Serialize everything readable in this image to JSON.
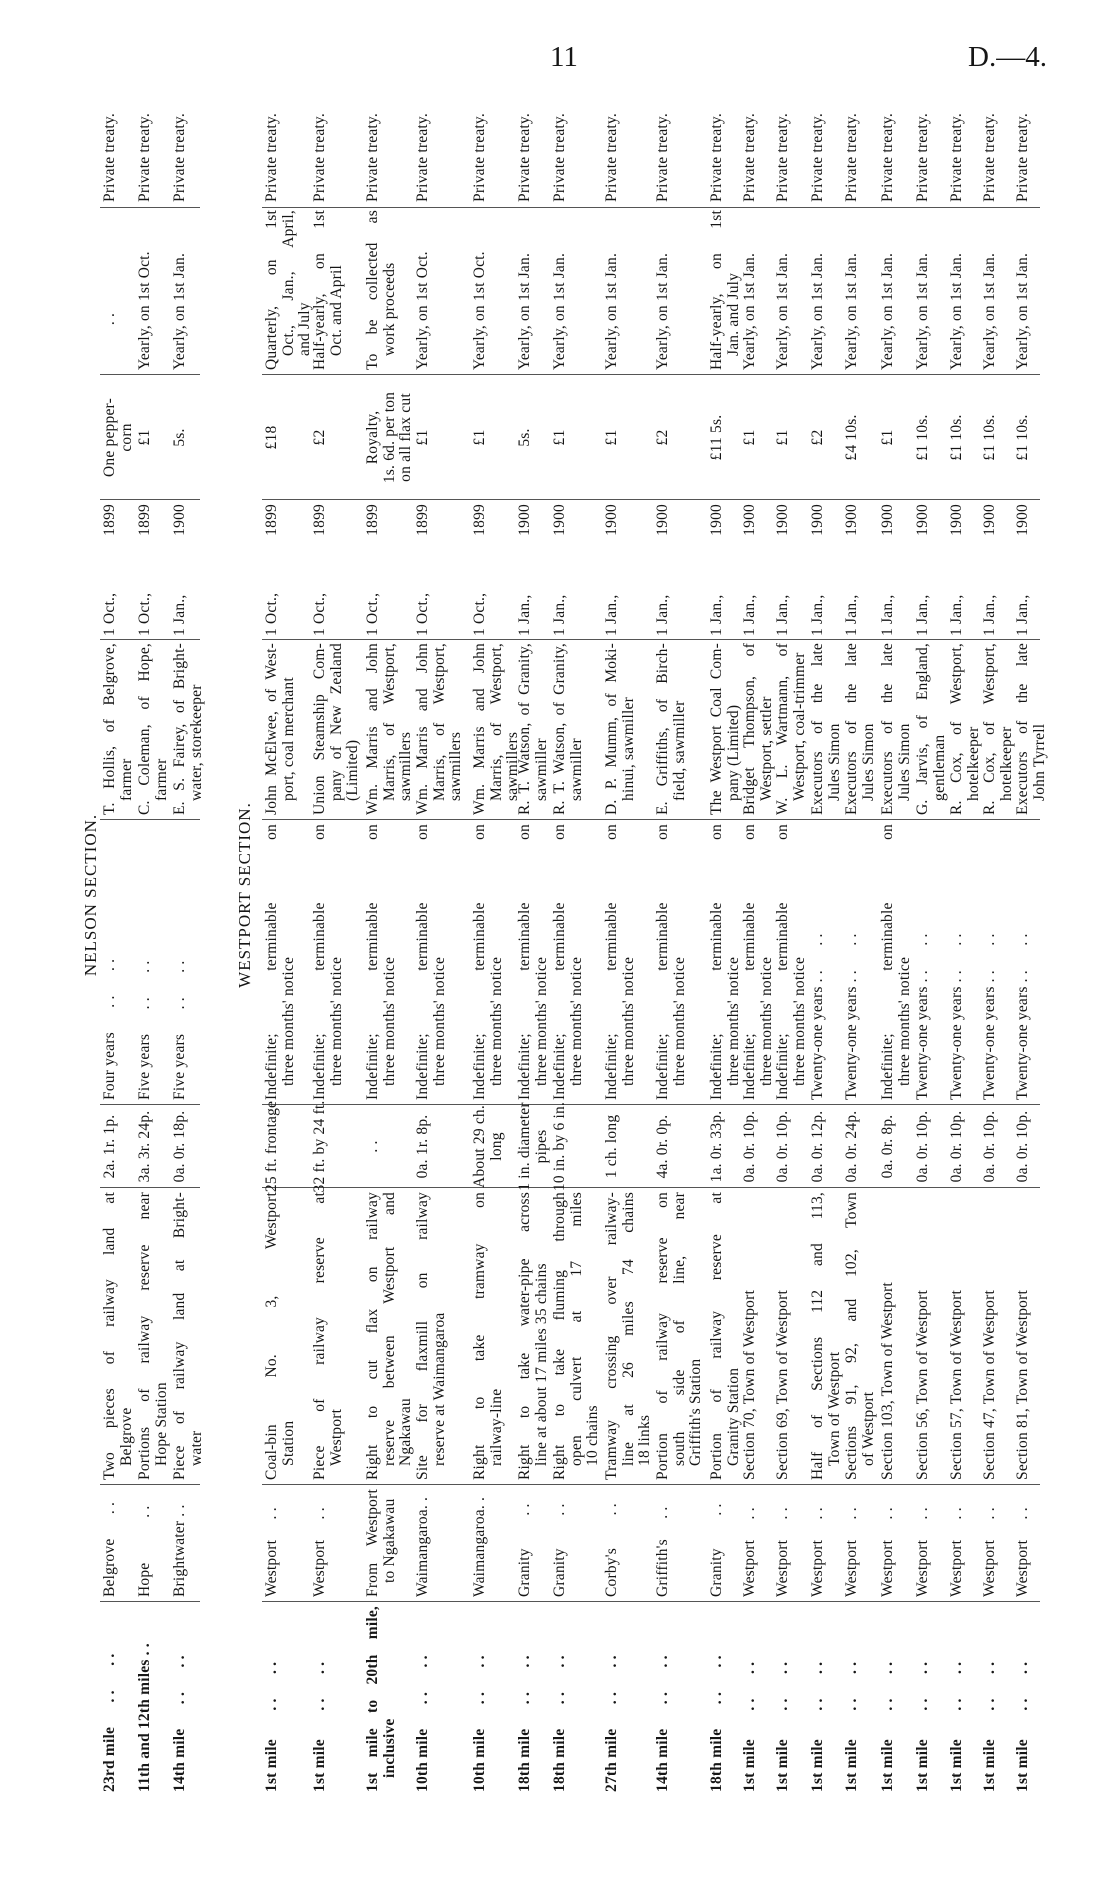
{
  "page": {
    "number": "11",
    "ref": "D.—4."
  },
  "sections": [
    {
      "title": "NELSON SECTION.",
      "rows": [
        {
          "mileage": [
            "23rd mile      . .      . ."
          ],
          "station": [
            "Belgrove      . ."
          ],
          "description": [
            "Two pieces of railway land at",
            "Belgrove"
          ],
          "area": [
            "2a. 1r. 1p."
          ],
          "term": [
            "Four years      . .      . ."
          ],
          "lessee": [
            "T. Hollis, of Belgrove,",
            "farmer"
          ],
          "date_day": "1 Oct.,",
          "date_year": "1899",
          "rent": [
            "One pepper-",
            "corn"
          ],
          "payable": [
            "           . ."
          ],
          "disposal": [
            "Private treaty."
          ]
        },
        {
          "mileage": [
            "11th and 12th miles . ."
          ],
          "station": [
            "Hope           . ."
          ],
          "description": [
            "Portions of railway reserve near",
            "Hope Station"
          ],
          "area": [
            "3a. 3r. 24p."
          ],
          "term": [
            "Five years      . .      . ."
          ],
          "lessee": [
            "C. Coleman, of Hope,",
            "farmer"
          ],
          "date_day": "1 Oct.,",
          "date_year": "1899",
          "rent": [
            "£1"
          ],
          "payable": [
            "Yearly, on 1st Oct."
          ],
          "disposal": [
            "Private treaty."
          ]
        },
        {
          "mileage": [
            "14th mile      . .      . ."
          ],
          "station": [
            "Brightwater . ."
          ],
          "description": [
            "Piece of railway land at Bright-",
            "water"
          ],
          "area": [
            "0a. 0r. 18p."
          ],
          "term": [
            "Five years      . .      . ."
          ],
          "lessee": [
            "E. S. Fairey, of Bright-",
            "water, storekeeper"
          ],
          "date_day": "1 Jan.,",
          "date_year": "1900",
          "rent": [
            "5s."
          ],
          "payable": [
            "Yearly, on 1st Jan."
          ],
          "disposal": [
            "Private treaty."
          ]
        }
      ]
    },
    {
      "title": "WESTPORT SECTION.",
      "rows": [
        {
          "mileage": [
            "1st mile       . .      . ."
          ],
          "station": [
            "Westport     . ."
          ],
          "description": [
            "Coal-bin No. 3, Westport",
            "Station"
          ],
          "area": [
            "25 ft. frontage"
          ],
          "term": [
            "Indefinite; terminable on",
            "three months' notice"
          ],
          "lessee": [
            "John McElwee, of West-",
            "port, coal merchant"
          ],
          "date_day": "1 Oct.,",
          "date_year": "1899",
          "rent": [
            "£18"
          ],
          "payable": [
            "Quarterly, on 1st",
            "Oct., Jan., April,",
            "and July"
          ],
          "disposal": [
            "Private treaty."
          ]
        },
        {
          "mileage": [
            "1st mile       . .      . ."
          ],
          "station": [
            "Westport     . ."
          ],
          "description": [
            "Piece of railway reserve at",
            "Westport"
          ],
          "area": [
            "32 ft. by 24 ft."
          ],
          "term": [
            "Indefinite; terminable on",
            "three months' notice"
          ],
          "lessee": [
            "Union Steamship Com-",
            "pany of New Zealand",
            "(Limited)"
          ],
          "date_day": "1 Oct.,",
          "date_year": "1899",
          "rent": [
            "£2"
          ],
          "payable": [
            "Half-yearly, on 1st",
            "Oct. and April"
          ],
          "disposal": [
            "Private treaty."
          ]
        },
        {
          "mileage": [
            "1st mile to 20th mile,",
            "inclusive"
          ],
          "station": [
            "From Westport",
            "to Ngakawau"
          ],
          "description": [
            "Right to cut flax on railway",
            "reserve between Westport and",
            "Ngakawau"
          ],
          "area": [
            ". ."
          ],
          "term": [
            "Indefinite; terminable on",
            "three months' notice"
          ],
          "lessee": [
            "Wm. Marris and John",
            "Marris, of Westport,",
            "sawmillers"
          ],
          "date_day": "1 Oct.,",
          "date_year": "1899",
          "rent": [
            "Royalty,",
            "1s. 6d. per ton",
            "on all flax cut"
          ],
          "payable": [
            "To be collected as",
            "work proceeds"
          ],
          "disposal": [
            "Private treaty."
          ]
        },
        {
          "mileage": [
            "10th mile      . .      . ."
          ],
          "station": [
            "Waimangaroa. ."
          ],
          "description": [
            "Site for flaxmill on railway",
            "reserve at Waimangaroa"
          ],
          "area": [
            "0a. 1r. 8p."
          ],
          "term": [
            "Indefinite; terminable on",
            "three months' notice"
          ],
          "lessee": [
            "Wm. Marris and John",
            "Marris, of Westport,",
            "sawmillers"
          ],
          "date_day": "1 Oct.,",
          "date_year": "1899",
          "rent": [
            "£1"
          ],
          "payable": [
            "Yearly, on 1st Oct."
          ],
          "disposal": [
            "Private treaty."
          ]
        },
        {
          "mileage": [
            "10th mile      . .      . ."
          ],
          "station": [
            "Waimangaroa. ."
          ],
          "description": [
            "Right to take tramway on",
            "railway-line"
          ],
          "area": [
            "About 29 ch.",
            "long"
          ],
          "term": [
            "Indefinite; terminable on",
            "three months' notice"
          ],
          "lessee": [
            "Wm. Marris and John",
            "Marris, of Westport,",
            "sawmillers"
          ],
          "date_day": "1 Oct.,",
          "date_year": "1899",
          "rent": [
            "£1"
          ],
          "payable": [
            "Yearly, on 1st Oct."
          ],
          "disposal": [
            "Private treaty."
          ]
        },
        {
          "mileage": [
            "18th mile      . .      . ."
          ],
          "station": [
            "Granity        . ."
          ],
          "description": [
            "Right to take water-pipe across",
            "line at about 17 miles 35 chains"
          ],
          "area": [
            "1 in. diameter",
            "pipes"
          ],
          "term": [
            "Indefinite; terminable on",
            "three months' notice"
          ],
          "lessee": [
            "R. T. Watson, of Granity,",
            "sawmiller"
          ],
          "date_day": "1 Jan.,",
          "date_year": "1900",
          "rent": [
            "5s."
          ],
          "payable": [
            "Yearly, on 1st Jan."
          ],
          "disposal": [
            "Private treaty."
          ]
        },
        {
          "mileage": [
            "18th mile      . .      . ."
          ],
          "station": [
            "Granity        . ."
          ],
          "description": [
            "Right to take fluming through",
            "open culvert at 17 miles",
            "10 chains"
          ],
          "area": [
            "10 in. by 6 in."
          ],
          "term": [
            "Indefinite; terminable on",
            "three months' notice"
          ],
          "lessee": [
            "R. T. Watson, of Granity,",
            "sawmiller"
          ],
          "date_day": "1 Jan.,",
          "date_year": "1900",
          "rent": [
            "£1"
          ],
          "payable": [
            "Yearly, on 1st Jan."
          ],
          "disposal": [
            "Private treaty."
          ]
        },
        {
          "mileage": [
            "27th mile      . .      . ."
          ],
          "station": [
            "Corby's        . ."
          ],
          "description": [
            "Tramway crossing over railway-",
            "line at 26 miles 74 chains",
            "18 links"
          ],
          "area": [
            "1 ch. long"
          ],
          "term": [
            "Indefinite; terminable on",
            "three months' notice"
          ],
          "lessee": [
            "D. P. Mumm, of Moki-",
            "hinui, sawmiller"
          ],
          "date_day": "1 Jan.,",
          "date_year": "1900",
          "rent": [
            "£1"
          ],
          "payable": [
            "Yearly, on 1st Jan."
          ],
          "disposal": [
            "Private treaty."
          ]
        },
        {
          "mileage": [
            "14th mile      . .      . ."
          ],
          "station": [
            "Griffith's     . ."
          ],
          "description": [
            "Portion of railway reserve on",
            "south side of line, near",
            "Griffith's Station"
          ],
          "area": [
            "4a. 0r. 0p."
          ],
          "term": [
            "Indefinite; terminable on",
            "three months' notice"
          ],
          "lessee": [
            "E. Griffiths, of Birch-",
            "field, sawmiller"
          ],
          "date_day": "1 Jan.,",
          "date_year": "1900",
          "rent": [
            "£2"
          ],
          "payable": [
            "Yearly, on 1st Jan."
          ],
          "disposal": [
            "Private treaty."
          ]
        },
        {
          "mileage": [
            "18th mile      . .      . ."
          ],
          "station": [
            "Granity        . ."
          ],
          "description": [
            "Portion of railway reserve at",
            "Granity Station"
          ],
          "area": [
            "1a. 0r. 33p."
          ],
          "term": [
            "Indefinite; terminable on",
            "three months' notice"
          ],
          "lessee": [
            "The Westport Coal Com-",
            "pany (Limited)"
          ],
          "date_day": "1 Jan.,",
          "date_year": "1900",
          "rent": [
            "£11 5s."
          ],
          "payable": [
            "Half-yearly, on 1st",
            "Jan. and July"
          ],
          "disposal": [
            "Private treaty."
          ]
        },
        {
          "mileage": [
            "1st mile       . .      . ."
          ],
          "station": [
            "Westport     . ."
          ],
          "description": [
            "Section 70, Town of Westport"
          ],
          "area": [
            "0a. 0r. 10p."
          ],
          "term": [
            "Indefinite; terminable on",
            "three months' notice"
          ],
          "lessee": [
            "Bridget Thompson, of",
            "Westport, settler"
          ],
          "date_day": "1 Jan.,",
          "date_year": "1900",
          "rent": [
            "£1"
          ],
          "payable": [
            "Yearly, on 1st Jan."
          ],
          "disposal": [
            "Private treaty."
          ]
        },
        {
          "mileage": [
            "1st mile       . .      . ."
          ],
          "station": [
            "Westport     . ."
          ],
          "description": [
            "Section 69, Town of Westport"
          ],
          "area": [
            "0a. 0r. 10p."
          ],
          "term": [
            "Indefinite; terminable on",
            "three months' notice"
          ],
          "lessee": [
            "W. L. Wartmann, of",
            "Westport, coal-trimmer"
          ],
          "date_day": "1 Jan.,",
          "date_year": "1900",
          "rent": [
            "£1"
          ],
          "payable": [
            "Yearly, on 1st Jan."
          ],
          "disposal": [
            "Private treaty."
          ]
        },
        {
          "mileage": [
            "1st mile       . .      . ."
          ],
          "station": [
            "Westport     . ."
          ],
          "description": [
            "Half of Sections 112 and 113,",
            "Town of Westport"
          ],
          "area": [
            "0a. 0r. 12p."
          ],
          "term": [
            "Twenty-one years . .      . ."
          ],
          "lessee": [
            "Executors of the late",
            "Jules Simon"
          ],
          "date_day": "1 Jan.,",
          "date_year": "1900",
          "rent": [
            "£2"
          ],
          "payable": [
            "Yearly, on 1st Jan."
          ],
          "disposal": [
            "Private treaty."
          ]
        },
        {
          "mileage": [
            "1st mile       . .      . ."
          ],
          "station": [
            "Westport     . ."
          ],
          "description": [
            "Sections 91, 92, and 102, Town",
            "of Westport"
          ],
          "area": [
            "0a. 0r. 24p."
          ],
          "term": [
            "Twenty-one years . .      . ."
          ],
          "lessee": [
            "Executors of the late",
            "Jules Simon"
          ],
          "date_day": "1 Jan.,",
          "date_year": "1900",
          "rent": [
            "£4 10s."
          ],
          "payable": [
            "Yearly, on 1st Jan."
          ],
          "disposal": [
            "Private treaty."
          ]
        },
        {
          "mileage": [
            "1st mile       . .      . ."
          ],
          "station": [
            "Westport     . ."
          ],
          "description": [
            "Section 103, Town of Westport"
          ],
          "area": [
            "0a. 0r. 8p."
          ],
          "term": [
            "Indefinite; terminable on",
            "three months' notice"
          ],
          "lessee": [
            "Executors of the late",
            "Jules Simon"
          ],
          "date_day": "1 Jan.,",
          "date_year": "1900",
          "rent": [
            "£1"
          ],
          "payable": [
            "Yearly, on 1st Jan."
          ],
          "disposal": [
            "Private treaty."
          ]
        },
        {
          "mileage": [
            "1st mile       . .      . ."
          ],
          "station": [
            "Westport     . ."
          ],
          "description": [
            "Section 56, Town of Westport"
          ],
          "area": [
            "0a. 0r. 10p."
          ],
          "term": [
            "Twenty-one years . .      . ."
          ],
          "lessee": [
            "G. Jarvis, of England,",
            "gentleman"
          ],
          "date_day": "1 Jan.,",
          "date_year": "1900",
          "rent": [
            "£1 10s."
          ],
          "payable": [
            "Yearly, on 1st Jan."
          ],
          "disposal": [
            "Private treaty."
          ]
        },
        {
          "mileage": [
            "1st mile       . .      . ."
          ],
          "station": [
            "Westport     . ."
          ],
          "description": [
            "Section 57, Town of Westport"
          ],
          "area": [
            "0a. 0r. 10p."
          ],
          "term": [
            "Twenty-one years . .      . ."
          ],
          "lessee": [
            "R. Cox, of Westport,",
            "hotelkeeper"
          ],
          "date_day": "1 Jan.,",
          "date_year": "1900",
          "rent": [
            "£1 10s."
          ],
          "payable": [
            "Yearly, on 1st Jan."
          ],
          "disposal": [
            "Private treaty."
          ]
        },
        {
          "mileage": [
            "1st mile       . .      . ."
          ],
          "station": [
            "Westport     . ."
          ],
          "description": [
            "Section 47, Town of Westport"
          ],
          "area": [
            "0a. 0r. 10p."
          ],
          "term": [
            "Twenty-one years . .      . ."
          ],
          "lessee": [
            "R. Cox, of Westport,",
            "hotelkeeper"
          ],
          "date_day": "1 Jan.,",
          "date_year": "1900",
          "rent": [
            "£1 10s."
          ],
          "payable": [
            "Yearly, on 1st Jan."
          ],
          "disposal": [
            "Private treaty."
          ]
        },
        {
          "mileage": [
            "1st mile       . .      . ."
          ],
          "station": [
            "Westport     . ."
          ],
          "description": [
            "Section 81, Town of Westport"
          ],
          "area": [
            "0a. 0r. 10p."
          ],
          "term": [
            "Twenty-one years . .      . ."
          ],
          "lessee": [
            "Executors of the late",
            "John Tyrrell"
          ],
          "date_day": "1 Jan.,",
          "date_year": "1900",
          "rent": [
            "£1 10s."
          ],
          "payable": [
            "Yearly, on 1st Jan."
          ],
          "disposal": [
            "Private treaty."
          ]
        }
      ]
    }
  ]
}
